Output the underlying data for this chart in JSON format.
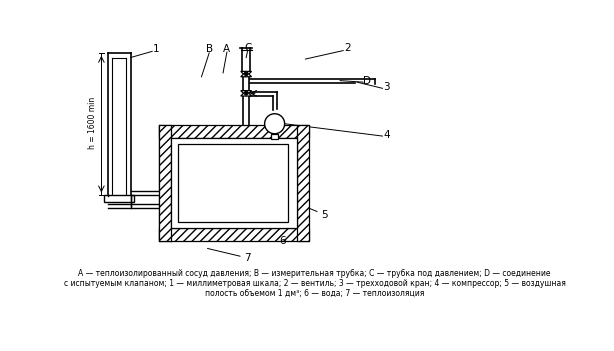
{
  "bg_color": "#ffffff",
  "line_color": "#000000",
  "caption_line1": "A — теплоизолированный сосуд давления; B — измерительная трубка; C — трубка под давлением; D — соединение",
  "caption_line2": "с испытуемым клапаном; 1 — миллиметровая шкала; 2 — вентиль; 3 — трехходовой кран; 4 — компрессор; 5 — воздушная",
  "caption_line3": "полость объемом 1 дм³; 6 — вода; 7 — теплоизоляция",
  "height_label": "h = 1600 min",
  "label_1": "1",
  "label_2": "2",
  "label_3": "3",
  "label_4": "4",
  "label_5": "5",
  "label_6": "6",
  "label_7": "7",
  "label_A": "A",
  "label_B": "B",
  "label_C": "C",
  "label_D": "D"
}
